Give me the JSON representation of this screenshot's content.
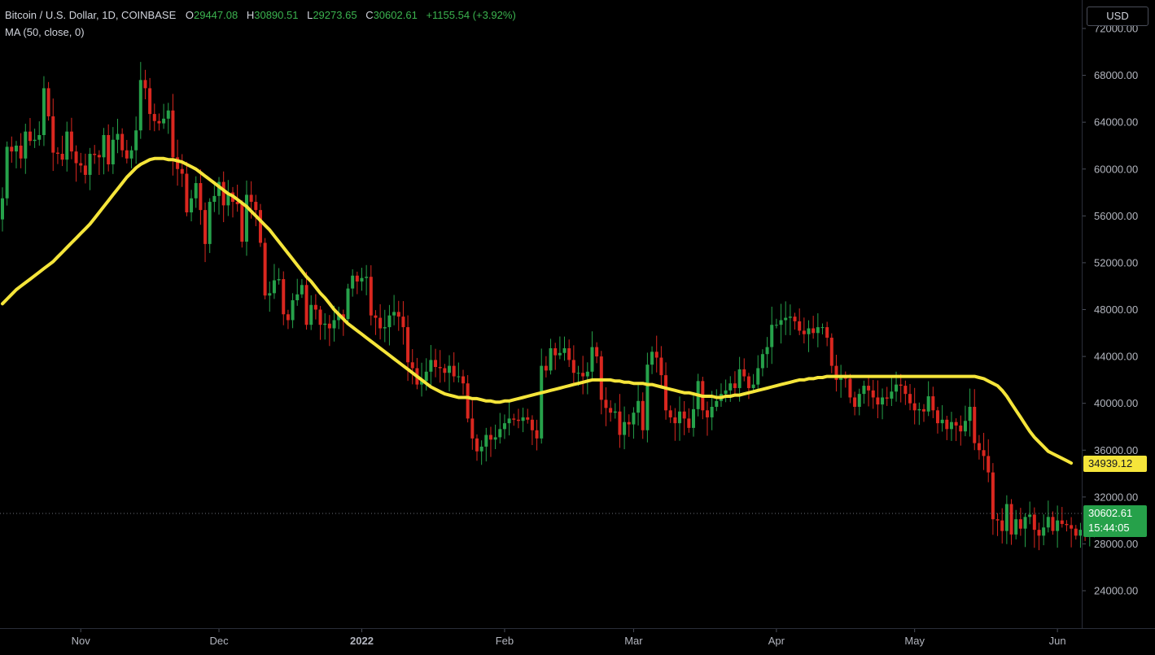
{
  "legend": {
    "symbol": "Bitcoin / U.S. Dollar, 1D, COINBASE",
    "o_label": "O",
    "o_value": "29447.08",
    "h_label": "H",
    "h_value": "30890.51",
    "l_label": "L",
    "l_value": "29273.65",
    "c_label": "C",
    "c_value": "30602.61",
    "change": "+1155.54 (+3.92%)",
    "indicator": "MA (50, close, 0)"
  },
  "currency": "USD",
  "price_tags": {
    "ma_value": "34939.12",
    "last_price": "30602.61",
    "countdown": "15:44:05"
  },
  "colors": {
    "up": "#26a14a",
    "down": "#d9271f",
    "ma": "#f5e53a",
    "legend_values": "#3bb34f"
  },
  "chart_data": {
    "type": "candlestick",
    "title": "Bitcoin / U.S. Dollar, 1D, COINBASE",
    "ylim": [
      22000,
      74000
    ],
    "y_ticks": [
      24000,
      28000,
      32000,
      36000,
      40000,
      44000,
      48000,
      52000,
      56000,
      60000,
      64000,
      68000,
      72000
    ],
    "y_tick_labels": [
      "24000.00",
      "28000.00",
      "32000.00",
      "36000.00",
      "40000.00",
      "44000.00",
      "48000.00",
      "52000.00",
      "56000.00",
      "60000.00",
      "64000.00",
      "68000.00",
      "72000.00"
    ],
    "x_labels": [
      {
        "label": "Nov",
        "day": 17
      },
      {
        "label": "Dec",
        "day": 47
      },
      {
        "label": "2022",
        "day": 78
      },
      {
        "label": "Feb",
        "day": 109
      },
      {
        "label": "Mar",
        "day": 137
      },
      {
        "label": "Apr",
        "day": 168
      },
      {
        "label": "May",
        "day": 198
      },
      {
        "label": "Jun",
        "day": 229
      }
    ],
    "day_range": [
      0,
      240
    ],
    "closes": [
      57500,
      61900,
      61500,
      62000,
      60900,
      63200,
      62400,
      62500,
      62900,
      66900,
      64500,
      61400,
      61300,
      60800,
      63200,
      61500,
      60500,
      60300,
      59500,
      61300,
      61200,
      61000,
      62900,
      60400,
      62500,
      63000,
      61600,
      60900,
      61600,
      63300,
      67600,
      66900,
      64700,
      64100,
      63900,
      64300,
      65000,
      61000,
      60000,
      59600,
      56300,
      57500,
      58800,
      56500,
      53600,
      57200,
      57700,
      58900,
      56900,
      58000,
      57200,
      57000,
      53800,
      57800,
      57200,
      56500,
      53700,
      49200,
      49400,
      50500,
      50600,
      47600,
      47100,
      48800,
      49300,
      50100,
      46700,
      48400,
      48000,
      46700,
      46800,
      46400,
      47100,
      47600,
      47200,
      49800,
      50900,
      50400,
      50700,
      50800,
      47500,
      47300,
      46400,
      46500,
      47500,
      47800,
      47400,
      46500,
      43500,
      43000,
      41600,
      41900,
      42700,
      43700,
      43100,
      43000,
      42600,
      43200,
      42300,
      42300,
      41700,
      38700,
      37000,
      35900,
      36300,
      37300,
      36900,
      37100,
      37800,
      38300,
      38700,
      38600,
      38500,
      38800,
      38600,
      37700,
      37000,
      43200,
      42800,
      44700,
      44100,
      44300,
      44700,
      43700,
      42600,
      42600,
      42300,
      42700,
      44800,
      44000,
      40300,
      39600,
      39200,
      39300,
      37300,
      38400,
      38200,
      39200,
      40200,
      37700,
      43300,
      44400,
      43900,
      42400,
      39400,
      38800,
      38300,
      39300,
      38700,
      37900,
      39500,
      41900,
      39400,
      38800,
      39700,
      40200,
      40800,
      41100,
      41700,
      41300,
      42900,
      42300,
      41300,
      41600,
      43000,
      44200,
      44800,
      46700,
      46700,
      47100,
      47300,
      47400,
      47000,
      46200,
      45900,
      46400,
      46000,
      46500,
      46500,
      45600,
      43200,
      42000,
      42300,
      42100,
      40500,
      39700,
      40800,
      41500,
      41100,
      40500,
      39900,
      40500,
      40400,
      41000,
      41600,
      41500,
      40800,
      40000,
      39400,
      39500,
      39300,
      40600,
      39400,
      38300,
      38600,
      37800,
      38400,
      38100,
      37600,
      38500,
      39700,
      36600,
      36000,
      35500,
      34100,
      30100,
      30000,
      29100,
      31400,
      28800,
      30100,
      29300,
      30300,
      30500,
      29200,
      28700,
      29400,
      30300,
      29100,
      30000,
      29700,
      29600,
      29300,
      28700,
      29200,
      28700,
      29500,
      30600
    ],
    "ma50": [
      48500,
      48900,
      49300,
      49700,
      50000,
      50300,
      50600,
      50900,
      51200,
      51500,
      51800,
      52100,
      52500,
      52900,
      53300,
      53700,
      54100,
      54500,
      54900,
      55300,
      55800,
      56300,
      56800,
      57300,
      57800,
      58300,
      58800,
      59300,
      59700,
      60100,
      60400,
      60600,
      60800,
      60900,
      60900,
      60900,
      60800,
      60800,
      60700,
      60600,
      60400,
      60200,
      60000,
      59700,
      59400,
      59100,
      58800,
      58500,
      58200,
      57900,
      57700,
      57400,
      57100,
      56800,
      56400,
      56000,
      55600,
      55200,
      54800,
      54300,
      53800,
      53300,
      52800,
      52300,
      51800,
      51300,
      50800,
      50400,
      49900,
      49400,
      49000,
      48500,
      48000,
      47600,
      47200,
      46800,
      46500,
      46200,
      45900,
      45600,
      45300,
      45000,
      44700,
      44400,
      44100,
      43800,
      43500,
      43200,
      42900,
      42600,
      42300,
      42000,
      41700,
      41400,
      41200,
      41000,
      40800,
      40700,
      40600,
      40500,
      40500,
      40500,
      40400,
      40400,
      40300,
      40200,
      40200,
      40100,
      40100,
      40200,
      40200,
      40300,
      40400,
      40500,
      40600,
      40700,
      40800,
      40900,
      41000,
      41100,
      41200,
      41300,
      41400,
      41500,
      41600,
      41700,
      41800,
      41900,
      42000,
      42000,
      42000,
      42000,
      42000,
      41900,
      41900,
      41800,
      41800,
      41700,
      41700,
      41700,
      41600,
      41600,
      41500,
      41400,
      41300,
      41200,
      41100,
      41000,
      40900,
      40900,
      40800,
      40700,
      40600,
      40600,
      40600,
      40500,
      40500,
      40600,
      40600,
      40700,
      40700,
      40800,
      40900,
      41000,
      41100,
      41200,
      41300,
      41400,
      41500,
      41600,
      41700,
      41800,
      41900,
      42000,
      42000,
      42100,
      42100,
      42200,
      42200,
      42300,
      42300,
      42300,
      42300,
      42300,
      42300,
      42300,
      42300,
      42300,
      42300,
      42300,
      42300,
      42300,
      42300,
      42300,
      42300,
      42300,
      42300,
      42300,
      42300,
      42300,
      42300,
      42300,
      42300,
      42300,
      42300,
      42300,
      42300,
      42300,
      42300,
      42300,
      42300,
      42300,
      42200,
      42100,
      41900,
      41700,
      41500,
      41100,
      40600,
      40000,
      39400,
      38800,
      38200,
      37600,
      37100,
      36700,
      36300,
      35900,
      35700,
      35500,
      35300,
      35100,
      34900
    ],
    "last_price": 30602.61,
    "ma_last": 34939.12
  }
}
